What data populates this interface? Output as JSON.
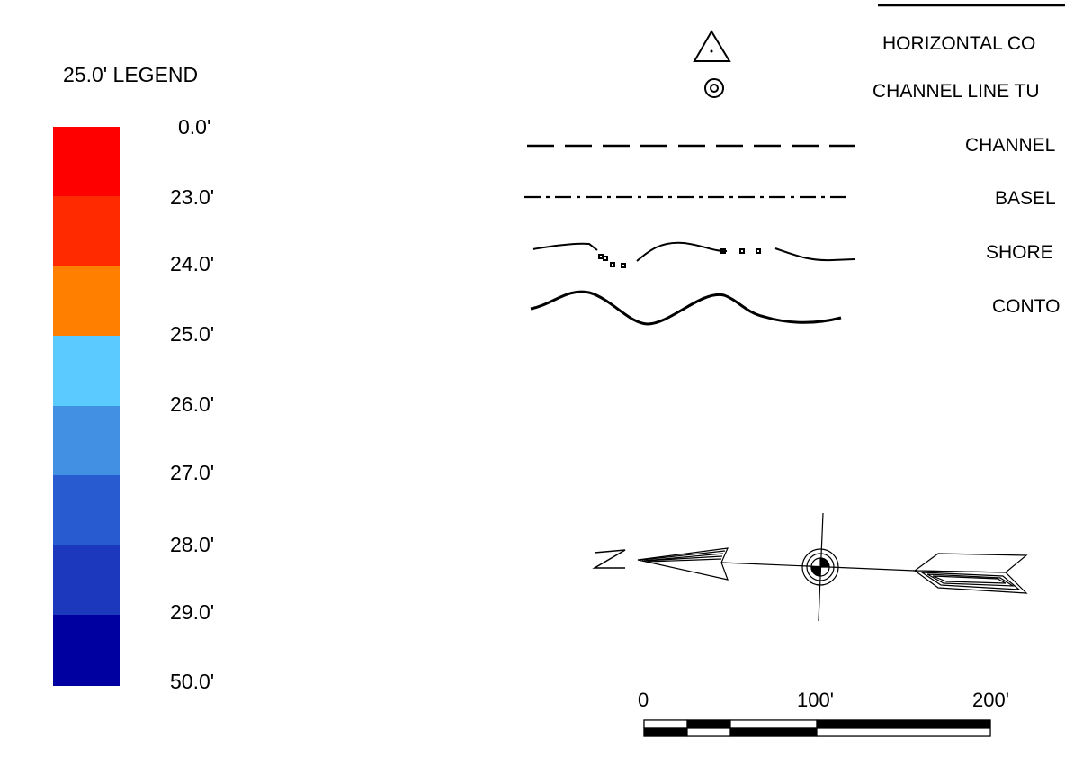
{
  "legend": {
    "title": "25.0' LEGEND",
    "bands": [
      {
        "color": "#ff0000"
      },
      {
        "color": "#ff2a00"
      },
      {
        "color": "#ff8000"
      },
      {
        "color": "#5bcbff"
      },
      {
        "color": "#4190e4"
      },
      {
        "color": "#295bd0"
      },
      {
        "color": "#1c38bc"
      },
      {
        "color": "#0000a0"
      }
    ],
    "labels": [
      "0.0'",
      "23.0'",
      "24.0'",
      "25.0'",
      "26.0'",
      "27.0'",
      "28.0'",
      "29.0'",
      "50.0'"
    ]
  },
  "symbols": {
    "horizontal_control": "HORIZONTAL CO",
    "channel_line_turn": "CHANNEL LINE TU",
    "channel": "CHANNEL",
    "baseline": "BASEL",
    "shoreline": "SHORE",
    "contour": "CONTO"
  },
  "north_arrow": {
    "letter": "N"
  },
  "scale_bar": {
    "labels": [
      "0",
      "100'",
      "200'"
    ]
  }
}
